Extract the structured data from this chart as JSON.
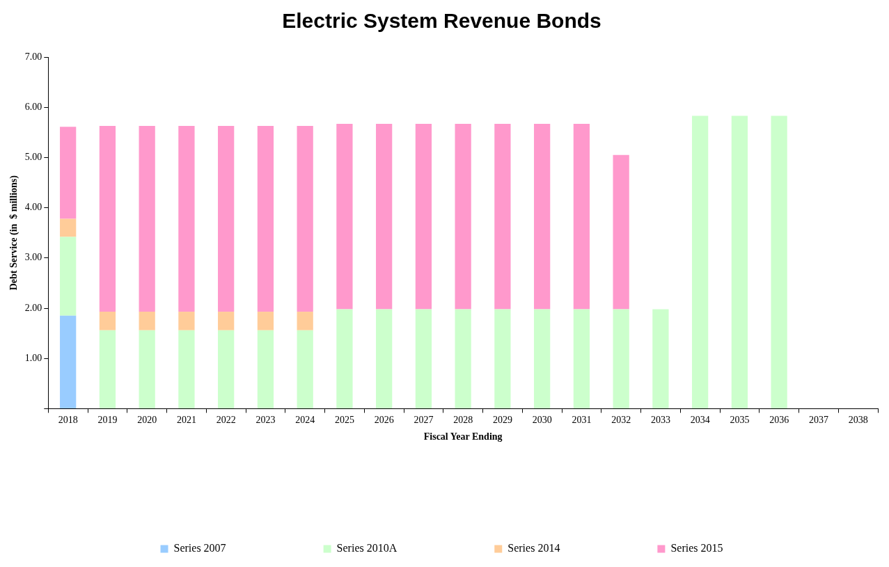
{
  "chart_data": {
    "type": "bar",
    "title": "Electric System Revenue Bonds",
    "xlabel": "Fiscal Year Ending",
    "ylabel": "Debt Service (in  $ millions)",
    "categories": [
      "2018",
      "2019",
      "2020",
      "2021",
      "2022",
      "2023",
      "2024",
      "2025",
      "2026",
      "2027",
      "2028",
      "2029",
      "2030",
      "2031",
      "2032",
      "2033",
      "2034",
      "2035",
      "2036",
      "2037",
      "2038"
    ],
    "stacked": true,
    "ylim": [
      0,
      7
    ],
    "yticks": [
      {
        "value": 0,
        "label": null
      },
      {
        "value": 1,
        "label": "1.00"
      },
      {
        "value": 2,
        "label": "2.00"
      },
      {
        "value": 3,
        "label": "3.00"
      },
      {
        "value": 4,
        "label": "4.00"
      },
      {
        "value": 5,
        "label": "5.00"
      },
      {
        "value": 6,
        "label": "6.00"
      },
      {
        "value": 7,
        "label": "7.00"
      }
    ],
    "grid": false,
    "legend": "bottom",
    "series": [
      {
        "name": "Series 2007",
        "color": "#99ccff",
        "values": [
          1.85,
          null,
          null,
          null,
          null,
          null,
          null,
          null,
          null,
          null,
          null,
          null,
          null,
          null,
          null,
          null,
          null,
          null,
          null,
          null,
          null
        ]
      },
      {
        "name": "Series 2010A",
        "color": "#ccffcc",
        "values": [
          1.57,
          1.56,
          1.56,
          1.56,
          1.56,
          1.56,
          1.56,
          1.98,
          1.98,
          1.98,
          1.98,
          1.98,
          1.98,
          1.98,
          1.98,
          1.98,
          5.83,
          5.83,
          5.83,
          null,
          null
        ]
      },
      {
        "name": "Series 2014",
        "color": "#ffcc99",
        "values": [
          0.36,
          0.37,
          0.37,
          0.37,
          0.37,
          0.37,
          0.37,
          null,
          null,
          null,
          null,
          null,
          null,
          null,
          null,
          null,
          null,
          null,
          null,
          null,
          null
        ]
      },
      {
        "name": "Series 2015",
        "color": "#ff99cc",
        "values": [
          1.83,
          3.7,
          3.7,
          3.7,
          3.7,
          3.7,
          3.7,
          3.69,
          3.69,
          3.69,
          3.69,
          3.69,
          3.69,
          3.69,
          3.07,
          null,
          null,
          null,
          null,
          null,
          null
        ]
      }
    ]
  }
}
